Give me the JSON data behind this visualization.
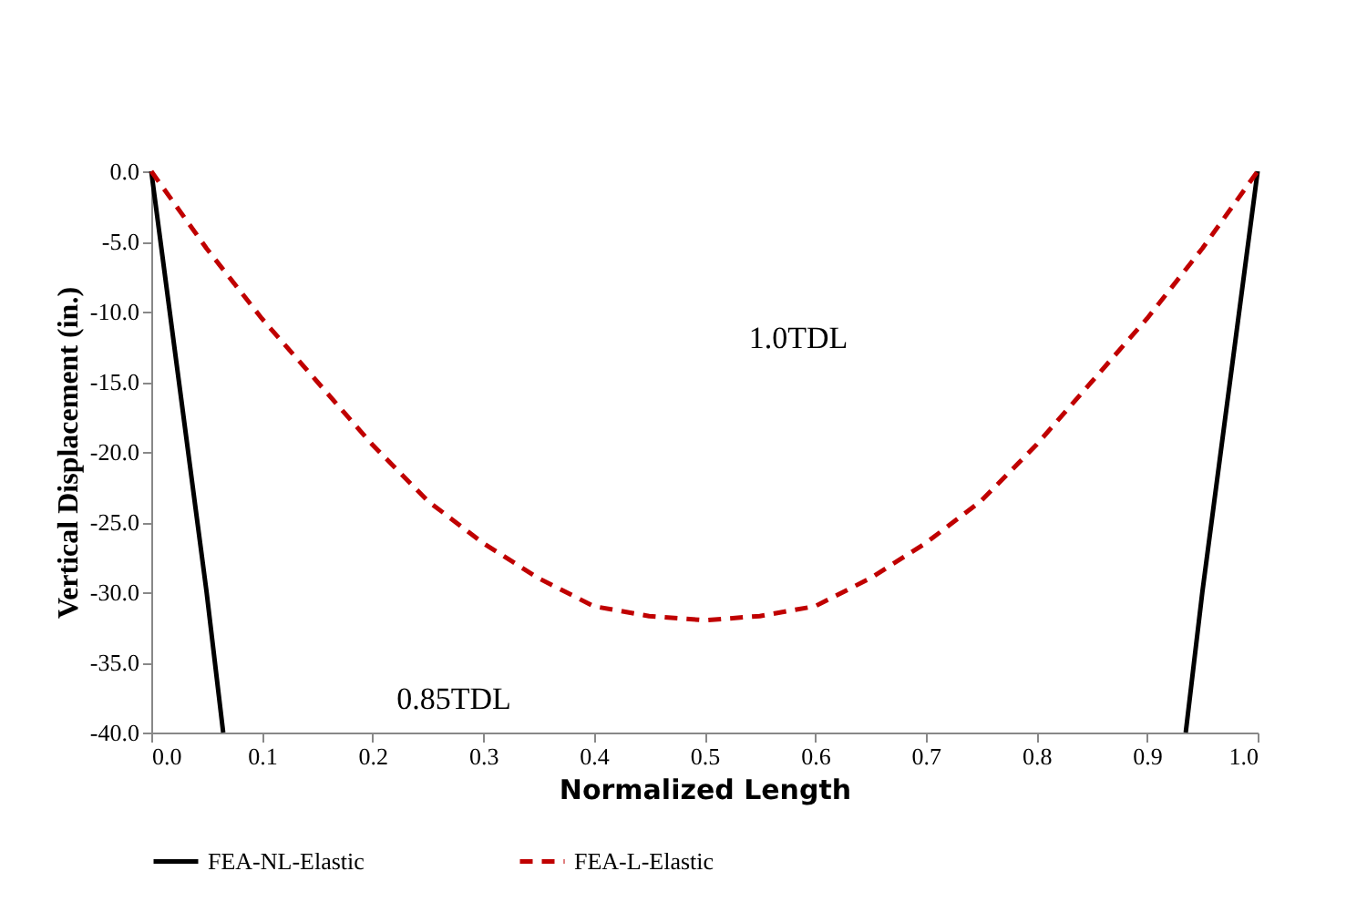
{
  "chart_data": {
    "type": "line",
    "xlabel": "Normalized Length",
    "ylabel": "Vertical Displacement (in.)",
    "xlim": [
      0,
      1
    ],
    "ylim": [
      -40,
      0
    ],
    "xticks": [
      {
        "value": 0,
        "label": "0.0"
      },
      0.1,
      0.2,
      0.3,
      0.4,
      0.5,
      0.6,
      0.7,
      0.8,
      0.9,
      {
        "value": 1,
        "label": "1.0"
      }
    ],
    "yticks": [
      {
        "value": 0,
        "label": "0.0"
      },
      {
        "value": -5,
        "label": "-5.0"
      },
      {
        "value": -10,
        "label": "-10.0"
      },
      {
        "value": -15,
        "label": "-15.0"
      },
      {
        "value": -20,
        "label": "-20.0"
      },
      {
        "value": -25,
        "label": "-25.0"
      },
      {
        "value": -30,
        "label": "-30.0"
      },
      {
        "value": -35,
        "label": "-35.0"
      },
      {
        "value": -40,
        "label": "-40.0"
      }
    ],
    "grid": false,
    "legend": "bottom",
    "marker": "none",
    "series": [
      {
        "name": "FEA-NL-Elastic",
        "color": "#000000",
        "line_style": "solid",
        "x": [
          0,
          0.01,
          0.02,
          0.03,
          0.04,
          0.05,
          0.065,
          0.5,
          0.935,
          0.95,
          0.96,
          0.97,
          0.98,
          0.99,
          1
        ],
        "values": [
          0,
          -6,
          -12,
          -18,
          -24,
          -30,
          -40,
          null,
          -40,
          -30,
          -24,
          -18,
          -12,
          -6,
          0
        ]
      },
      {
        "name": "FEA-L-Elastic",
        "color": "#c00000",
        "line_style": "dashed",
        "x": [
          0,
          0.05,
          0.1,
          0.15,
          0.2,
          0.25,
          0.3,
          0.35,
          0.4,
          0.45,
          0.5,
          0.55,
          0.6,
          0.65,
          0.7,
          0.75,
          0.8,
          0.85,
          0.9,
          0.95,
          1
        ],
        "values": [
          0,
          -5.5,
          -10.5,
          -15,
          -19.5,
          -23.5,
          -26.5,
          -29,
          -31,
          -31.7,
          -32,
          -31.7,
          -31,
          -29,
          -26.5,
          -23.5,
          -19.5,
          -15,
          -10.5,
          -5.5,
          0
        ]
      }
    ],
    "annotations": [
      "1.0TDL",
      "0.85TDL"
    ]
  }
}
